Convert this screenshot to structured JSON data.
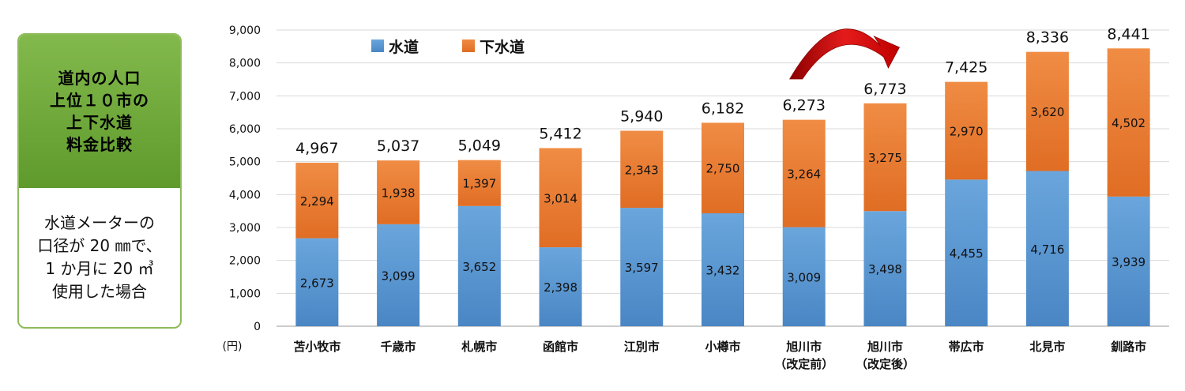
{
  "side_panel": {
    "heading_lines": [
      "道内の人口",
      "上位１０市の",
      "上下水道",
      "料金比較"
    ],
    "body_lines": [
      "水道メーターの",
      "口径が 20 ㎜で、",
      "1 か月に 20 ㎥",
      "使用した場合"
    ]
  },
  "chart_data": {
    "type": "bar",
    "stacked": true,
    "ylabel": "(円)",
    "ylim": [
      0,
      9000
    ],
    "yticks": [
      "0",
      "1,000",
      "2,000",
      "3,000",
      "4,000",
      "5,000",
      "6,000",
      "7,000",
      "8,000",
      "9,000"
    ],
    "legend_position": "top-left",
    "grid": true,
    "categories": [
      [
        "苫小牧市"
      ],
      [
        "千歳市"
      ],
      [
        "札幌市"
      ],
      [
        "函館市"
      ],
      [
        "江別市"
      ],
      [
        "小樽市"
      ],
      [
        "旭川市",
        "（改定前）"
      ],
      [
        "旭川市",
        "（改定後）"
      ],
      [
        "帯広市"
      ],
      [
        "北見市"
      ],
      [
        "釧路市"
      ]
    ],
    "series": [
      {
        "name": "水道",
        "color": "#5b9bd5",
        "values": [
          2673,
          3099,
          3652,
          2398,
          3597,
          3432,
          3009,
          3498,
          4455,
          4716,
          3939
        ],
        "labels": [
          "2,673",
          "3,099",
          "3,652",
          "2,398",
          "3,597",
          "3,432",
          "3,009",
          "3,498",
          "4,455",
          "4,716",
          "3,939"
        ]
      },
      {
        "name": "下水道",
        "color": "#ed7d31",
        "values": [
          2294,
          1938,
          1397,
          3014,
          2343,
          2750,
          3264,
          3275,
          2970,
          3620,
          4502
        ],
        "labels": [
          "2,294",
          "1,938",
          "1,397",
          "3,014",
          "2,343",
          "2,750",
          "3,264",
          "3,275",
          "2,970",
          "3,620",
          "4,502"
        ]
      }
    ],
    "totals": [
      "4,967",
      "5,037",
      "5,049",
      "5,412",
      "5,940",
      "6,182",
      "6,273",
      "6,773",
      "7,425",
      "8,336",
      "8,441"
    ],
    "annotations": [
      {
        "type": "curved-arrow",
        "from_category": 6,
        "to_category": 7,
        "color": "#c00000"
      }
    ]
  }
}
